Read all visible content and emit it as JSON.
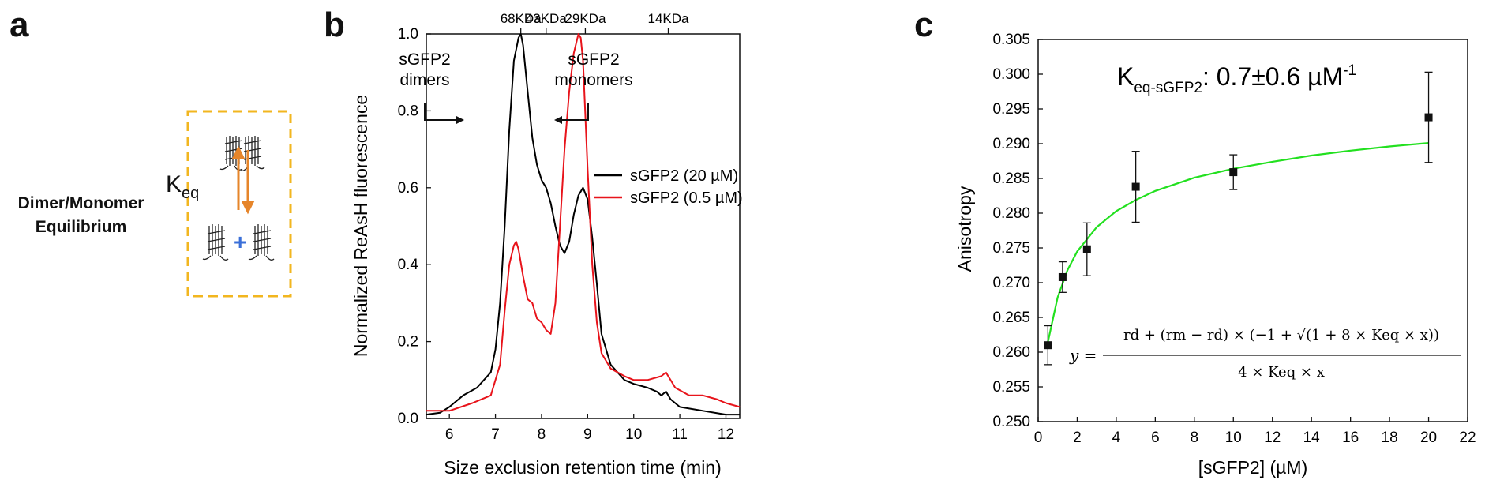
{
  "panels": {
    "a": "a",
    "b": "b",
    "c": "c"
  },
  "panel_a": {
    "line1": "Dimer/Monomer",
    "line2": "Equilibrium",
    "k_main": "K",
    "k_sub": "eq",
    "plus": "+",
    "colors": {
      "box": "#f2b61f",
      "arrow": "#e6852a",
      "plus": "#3a6fd8"
    }
  },
  "panel_b": {
    "mw_markers": [
      {
        "label": "68KDa",
        "x": 7.55
      },
      {
        "label": "43KDa",
        "x": 8.1
      },
      {
        "label": "29KDa",
        "x": 8.95
      },
      {
        "label": "14KDa",
        "x": 10.75
      }
    ],
    "annotations": {
      "dimers_line1": "sGFP2",
      "dimers_line2": "dimers",
      "monomers_line1": "sGFP2",
      "monomers_line2": "monomers"
    }
  },
  "panel_c": {
    "keq_main": "K",
    "keq_sub": "eq-sGFP2",
    "keq_value": ": 0.7±0.6 µM",
    "keq_sup": "-1",
    "formula": {
      "lhs": "y =",
      "numerator": "rd + (rm − rd) ×  (−1 + √(1 + 8 × Keq × x))",
      "denominator": "4 × Keq × x"
    }
  },
  "chart_data": [
    {
      "type": "line",
      "xlabel": "Size exclusion retention time (min)",
      "ylabel": "Normalized ReAsH fluorescence",
      "xlim": [
        5.5,
        12.3
      ],
      "ylim": [
        0,
        1.0
      ],
      "xticks": [
        6,
        7,
        8,
        9,
        10,
        11,
        12
      ],
      "yticks": [
        0.0,
        0.2,
        0.4,
        0.6,
        0.8,
        1.0
      ],
      "ytick_labels": [
        "0.0",
        "0.2",
        "0.4",
        "0.6",
        "0.8",
        "1.0"
      ],
      "legend_position": "right",
      "series": [
        {
          "name": "sGFP2 (20 µM)",
          "color": "#000000",
          "x": [
            5.5,
            5.8,
            6.0,
            6.3,
            6.6,
            6.9,
            7.0,
            7.1,
            7.2,
            7.3,
            7.4,
            7.5,
            7.55,
            7.6,
            7.7,
            7.8,
            7.9,
            8.0,
            8.1,
            8.2,
            8.3,
            8.4,
            8.5,
            8.6,
            8.7,
            8.8,
            8.9,
            9.0,
            9.1,
            9.2,
            9.3,
            9.5,
            9.8,
            10.0,
            10.3,
            10.5,
            10.6,
            10.7,
            10.8,
            11.0,
            11.5,
            12.0,
            12.3
          ],
          "y": [
            0.01,
            0.015,
            0.03,
            0.06,
            0.08,
            0.12,
            0.18,
            0.3,
            0.5,
            0.75,
            0.93,
            0.99,
            1.0,
            0.97,
            0.85,
            0.73,
            0.66,
            0.62,
            0.6,
            0.56,
            0.5,
            0.45,
            0.43,
            0.46,
            0.53,
            0.58,
            0.6,
            0.57,
            0.47,
            0.35,
            0.22,
            0.14,
            0.1,
            0.09,
            0.08,
            0.07,
            0.06,
            0.07,
            0.05,
            0.03,
            0.02,
            0.01,
            0.01
          ]
        },
        {
          "name": "sGFP2 (0.5 µM)",
          "color": "#e8141b",
          "x": [
            5.5,
            6.0,
            6.5,
            6.9,
            7.1,
            7.2,
            7.3,
            7.4,
            7.45,
            7.5,
            7.6,
            7.7,
            7.8,
            7.9,
            8.0,
            8.1,
            8.2,
            8.3,
            8.4,
            8.5,
            8.6,
            8.7,
            8.8,
            8.85,
            8.9,
            9.0,
            9.1,
            9.2,
            9.3,
            9.5,
            9.8,
            10.0,
            10.3,
            10.6,
            10.7,
            10.9,
            11.2,
            11.5,
            11.8,
            12.0,
            12.3
          ],
          "y": [
            0.02,
            0.02,
            0.04,
            0.06,
            0.14,
            0.28,
            0.4,
            0.45,
            0.46,
            0.44,
            0.37,
            0.31,
            0.3,
            0.26,
            0.25,
            0.23,
            0.22,
            0.3,
            0.5,
            0.7,
            0.85,
            0.95,
            1.0,
            0.99,
            0.93,
            0.65,
            0.4,
            0.25,
            0.17,
            0.13,
            0.11,
            0.1,
            0.1,
            0.11,
            0.12,
            0.08,
            0.06,
            0.06,
            0.05,
            0.04,
            0.03
          ]
        }
      ]
    },
    {
      "type": "scatter",
      "xlabel": "[sGFP2] (µM)",
      "ylabel": "Anisotropy",
      "xlim": [
        0,
        22
      ],
      "ylim": [
        0.25,
        0.305
      ],
      "xticks": [
        0,
        2,
        4,
        6,
        8,
        10,
        12,
        14,
        16,
        18,
        20,
        22
      ],
      "yticks": [
        0.25,
        0.255,
        0.26,
        0.265,
        0.27,
        0.275,
        0.28,
        0.285,
        0.29,
        0.295,
        0.3,
        0.305
      ],
      "ytick_labels": [
        "0.250",
        "0.255",
        "0.260",
        "0.265",
        "0.270",
        "0.275",
        "0.280",
        "0.285",
        "0.290",
        "0.295",
        "0.300",
        "0.305"
      ],
      "points": {
        "x": [
          0.5,
          1.25,
          2.5,
          5,
          10,
          20
        ],
        "y": [
          0.261,
          0.2708,
          0.2748,
          0.2838,
          0.2859,
          0.2938
        ],
        "err": [
          0.0028,
          0.0022,
          0.0038,
          0.0051,
          0.0025,
          0.0065
        ]
      },
      "fit": {
        "color": "#22e01f",
        "x": [
          0.5,
          1,
          1.5,
          2,
          3,
          4,
          5,
          6,
          8,
          10,
          12,
          14,
          16,
          18,
          20
        ],
        "y": [
          0.2615,
          0.2679,
          0.2718,
          0.2745,
          0.278,
          0.2803,
          0.2819,
          0.2832,
          0.2851,
          0.2864,
          0.2874,
          0.2883,
          0.289,
          0.2896,
          0.2901
        ]
      }
    }
  ]
}
